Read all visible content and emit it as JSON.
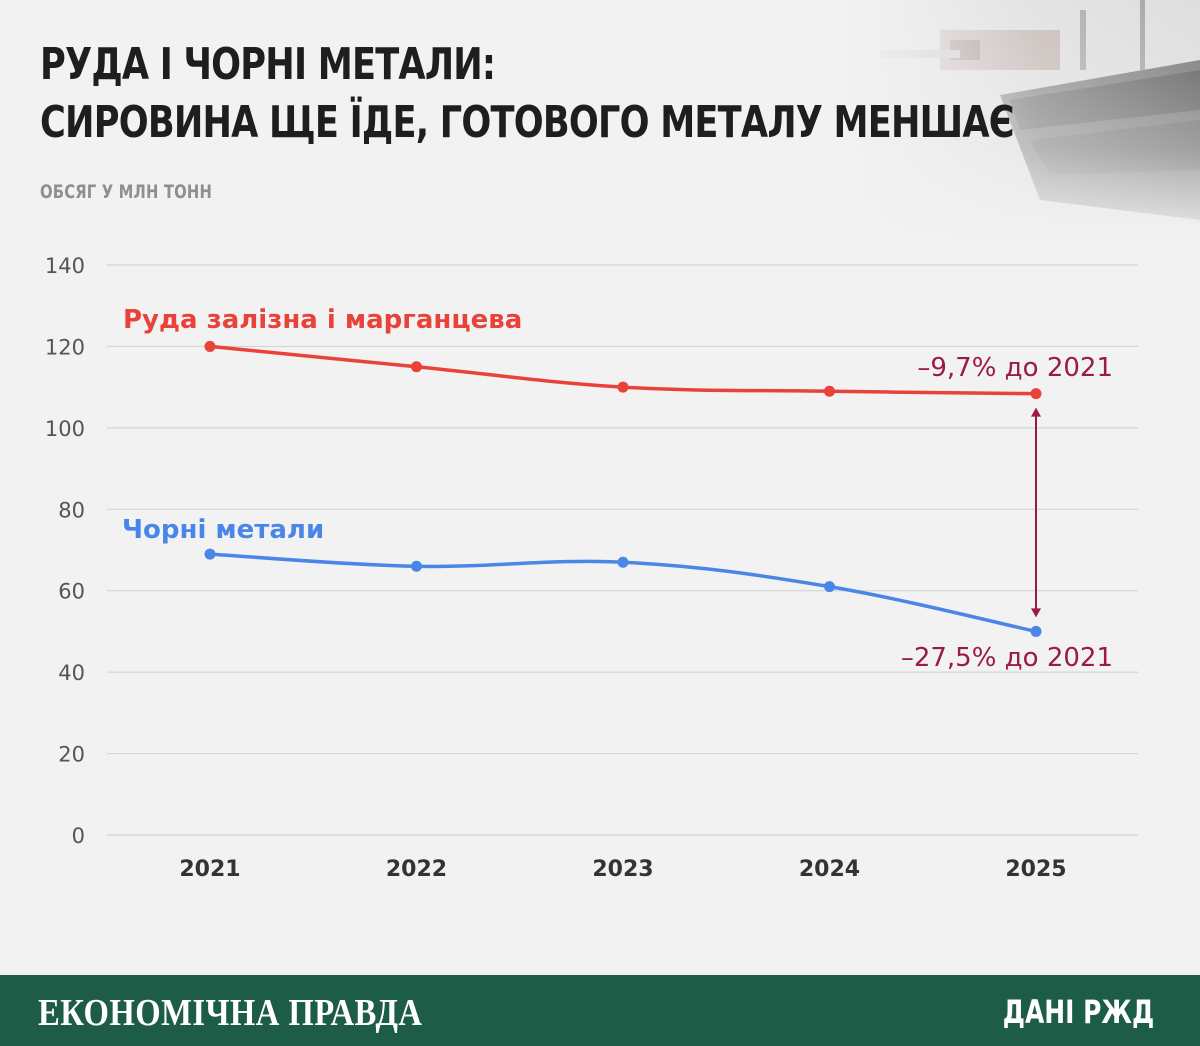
{
  "header": {
    "title_line1": "Руда і чорні метали:",
    "title_line2": "сировина ще їде, готового металу меншає",
    "subtitle": "ОБСЯГ У МЛН ТОНН"
  },
  "footer": {
    "brand": "ЕКОНОМІЧНА ПРАВДА",
    "source": "ДАНІ РЖД"
  },
  "colors": {
    "ore": "#e8423a",
    "metal": "#4a86e8",
    "annotation": "#9b1b47",
    "grid": "#cfcfcf",
    "footer_bg": "#1d5d47"
  },
  "chart_data": {
    "type": "line",
    "title": "Руда і чорні метали: сировина ще їде, готового металу меншає",
    "ylabel": "ОБСЯГ У МЛН ТОНН",
    "xlabel": "",
    "x": [
      "2021",
      "2022",
      "2023",
      "2024",
      "2025"
    ],
    "ylim": [
      0,
      140
    ],
    "yticks": [
      0,
      20,
      40,
      60,
      80,
      100,
      120,
      140
    ],
    "grid": true,
    "series": [
      {
        "name": "Руда залізна і марганцева",
        "values": [
          120,
          115,
          110,
          109,
          108.4
        ],
        "color": "#e8423a"
      },
      {
        "name": "Чорні метали",
        "values": [
          69,
          66,
          67,
          61,
          50
        ],
        "color": "#4a86e8"
      }
    ],
    "annotations": [
      {
        "text": "–9,7% до 2021",
        "series": 0,
        "x": "2025"
      },
      {
        "text": "–27,5% до 2021",
        "series": 1,
        "x": "2025"
      }
    ]
  }
}
